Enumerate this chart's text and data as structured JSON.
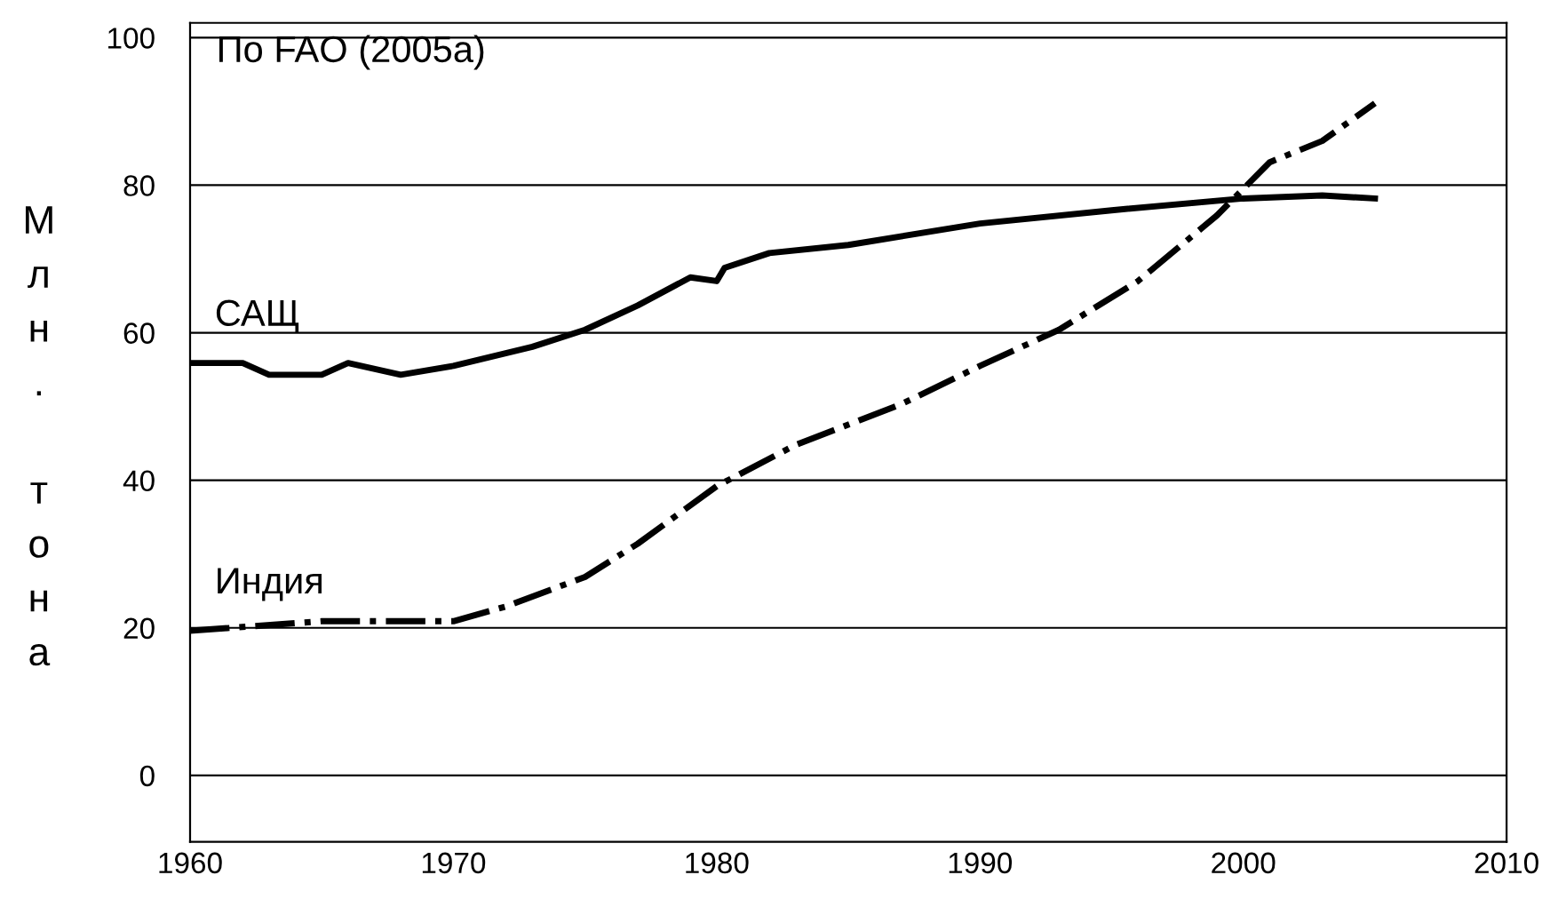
{
  "chart_data": {
    "type": "line",
    "ylabel": "Млн. тона",
    "annotations": [
      "По FAO (2005a)"
    ],
    "xlim": [
      1960,
      2010
    ],
    "xticks": [
      1960,
      1970,
      1980,
      1990,
      2000,
      2010
    ],
    "ylim": [
      -9,
      102
    ],
    "yticks": [
      0,
      20,
      40,
      60,
      80,
      100
    ],
    "grid": "y",
    "legend": false,
    "series": [
      {
        "name": "САЩ",
        "color": "#000000",
        "line_style": "solid",
        "x": [
          1960,
          1962,
          1963,
          1965,
          1966,
          1968,
          1970,
          1973,
          1975,
          1977,
          1979,
          1980,
          1980.3,
          1982,
          1985,
          1990,
          1995,
          2000,
          2003,
          2005
        ],
        "values": [
          55.9,
          55.9,
          54.3,
          54.3,
          55.9,
          54.3,
          55.5,
          58.1,
          60.4,
          63.7,
          67.5,
          67.0,
          68.8,
          70.8,
          71.9,
          74.8,
          76.6,
          78.2,
          78.6,
          78.2
        ]
      },
      {
        "name": "Индия",
        "color": "#000000",
        "line_style": "dashdot",
        "x": [
          1960,
          1965,
          1970,
          1972,
          1975,
          1977,
          1980,
          1983,
          1987,
          1990,
          1993,
          1996,
          1999,
          2001,
          2003,
          2005
        ],
        "values": [
          19.6,
          20.9,
          20.9,
          22.9,
          26.9,
          31.4,
          39.2,
          44.8,
          50.3,
          55.5,
          60.4,
          67.0,
          75.9,
          83.1,
          86.0,
          91.1
        ]
      }
    ]
  }
}
